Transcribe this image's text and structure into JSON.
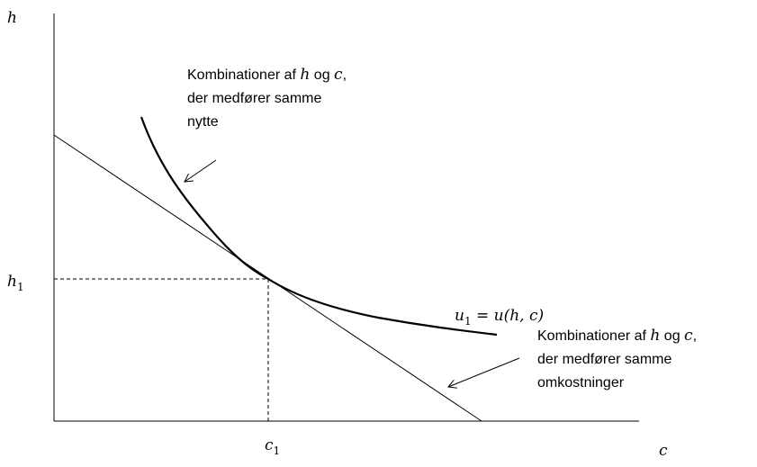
{
  "axes": {
    "y_label": "h",
    "x_label": "c",
    "h1": {
      "base": "h",
      "sub": "1"
    },
    "c1": {
      "base": "c",
      "sub": "1"
    }
  },
  "curve_label": {
    "base": "u",
    "sub": "1",
    "rest": " = u(h, c)"
  },
  "annotations": [
    {
      "lines": [
        [
          "Kombinationer af ",
          "h",
          " og ",
          "c",
          ","
        ],
        [
          "der medfører samme"
        ],
        [
          "nytte"
        ]
      ]
    },
    {
      "lines": [
        [
          "Kombinationer af ",
          "h",
          " og ",
          "c",
          ","
        ],
        [
          "der medfører samme"
        ],
        [
          "omkostninger"
        ]
      ]
    }
  ]
}
